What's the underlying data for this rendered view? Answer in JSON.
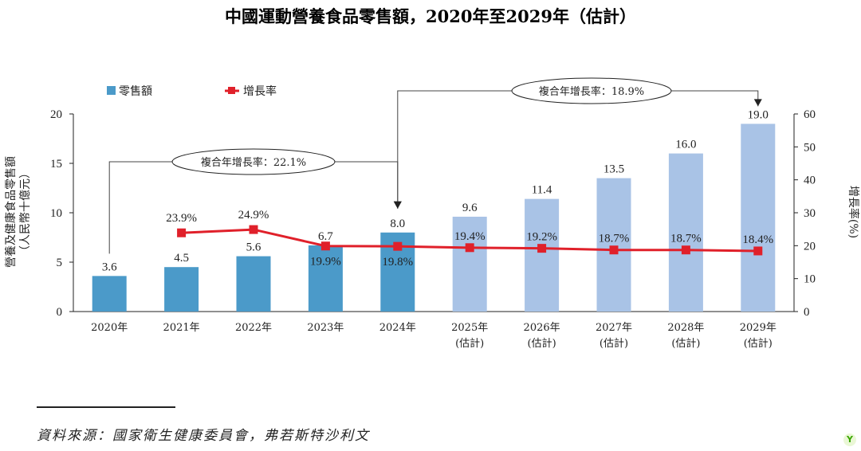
{
  "chart_data": {
    "type": "bar",
    "title": "中國運動營養食品零售額，2020年至2029年（估計）",
    "categories": [
      "2020年",
      "2021年",
      "2022年",
      "2023年",
      "2024年",
      "2025年",
      "2026年",
      "2027年",
      "2028年",
      "2029年"
    ],
    "category_sublabels": [
      "",
      "",
      "",
      "",
      "",
      "(估計)",
      "(估計)",
      "(估計)",
      "(估計)",
      "(估計)"
    ],
    "series": [
      {
        "name": "零售額",
        "type": "bar",
        "axis": "left",
        "values": [
          3.6,
          4.5,
          5.6,
          6.7,
          8.0,
          9.6,
          11.4,
          13.5,
          16.0,
          19.0
        ],
        "labels": [
          "3.6",
          "4.5",
          "5.6",
          "6.7",
          "8.0",
          "9.6",
          "11.4",
          "13.5",
          "16.0",
          "19.0"
        ],
        "color_actual": "#4b9ac9",
        "color_estimate": "#a9c3e6",
        "estimate_from_index": 5
      },
      {
        "name": "增長率",
        "type": "line",
        "axis": "right",
        "values": [
          null,
          23.9,
          24.9,
          19.9,
          19.8,
          19.4,
          19.2,
          18.7,
          18.7,
          18.4
        ],
        "labels": [
          "",
          "23.9%",
          "24.9%",
          "19.9%",
          "19.8%",
          "19.4%",
          "19.2%",
          "18.7%",
          "18.7%",
          "18.4%"
        ],
        "color": "#e0202a"
      }
    ],
    "ylabel": "營養及健康食品零售額（人民幣十億元）",
    "ylabel_line1": "營養及健康食品零售額",
    "ylabel_line2": "（人民幣十億元）",
    "y2label": "增長率(%)",
    "ylim": [
      0,
      20
    ],
    "yticks": [
      0,
      5,
      10,
      15,
      20
    ],
    "y2lim": [
      0,
      60
    ],
    "y2ticks": [
      0,
      10,
      20,
      30,
      40,
      50,
      60
    ],
    "legend": [
      "零售額",
      "增長率"
    ],
    "annotations": [
      {
        "text": "複合年增長率：22.1%",
        "from_index": 0,
        "to_index": 4
      },
      {
        "text": "複合年增長率：18.9%",
        "from_index": 4,
        "to_index": 9
      }
    ],
    "grid": false
  },
  "source_text": "資料來源：國家衛生健康委員會，弗若斯特沙利文",
  "brand_mark": "Y"
}
